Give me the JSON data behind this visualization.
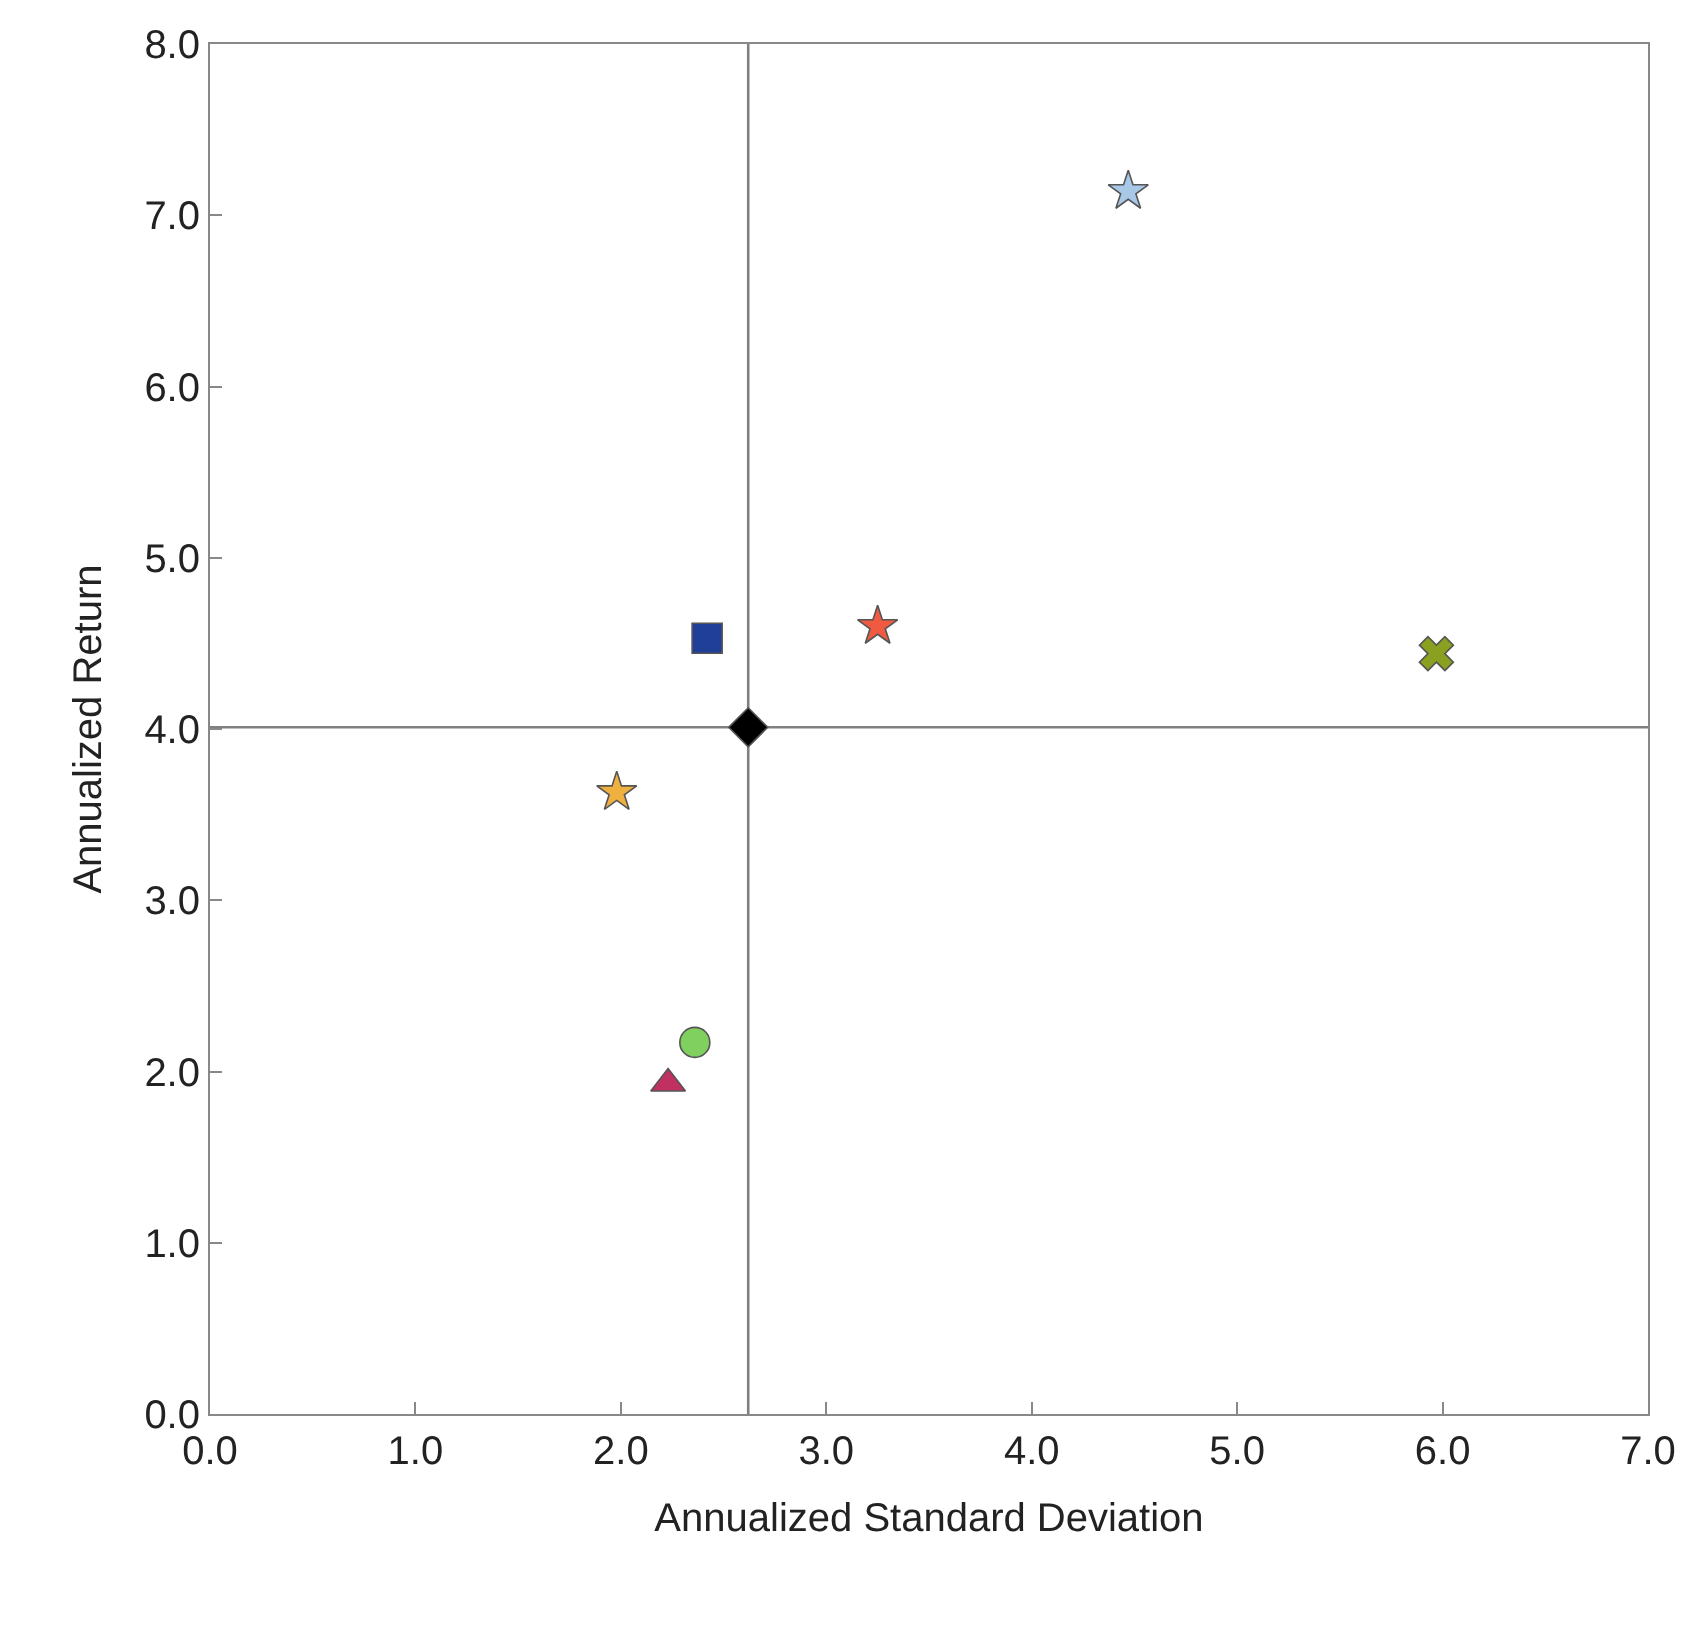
{
  "chart_data": {
    "type": "scatter",
    "xlabel": "Annualized Standard Deviation",
    "ylabel": "Annualized Return",
    "xlim": [
      0,
      7
    ],
    "ylim": [
      0,
      8
    ],
    "xticks": [
      {
        "value": 0,
        "label": "0.0"
      },
      {
        "value": 1,
        "label": "1.0"
      },
      {
        "value": 2,
        "label": "2.0"
      },
      {
        "value": 3,
        "label": "3.0"
      },
      {
        "value": 4,
        "label": "4.0"
      },
      {
        "value": 5,
        "label": "5.0"
      },
      {
        "value": 6,
        "label": "6.0"
      },
      {
        "value": 7,
        "label": "7.0"
      }
    ],
    "yticks": [
      {
        "value": 0,
        "label": "0.0"
      },
      {
        "value": 1,
        "label": "1.0"
      },
      {
        "value": 2,
        "label": "2.0"
      },
      {
        "value": 3,
        "label": "3.0"
      },
      {
        "value": 4,
        "label": "4.0"
      },
      {
        "value": 5,
        "label": "5.0"
      },
      {
        "value": 6,
        "label": "6.0"
      },
      {
        "value": 7,
        "label": "7.0"
      },
      {
        "value": 8,
        "label": "8.0"
      }
    ],
    "grid": false,
    "ref_lines": [
      {
        "axis": "x",
        "value": 2.62,
        "color": "#808080"
      },
      {
        "axis": "y",
        "value": 4.01,
        "color": "#808080"
      }
    ],
    "series": [
      {
        "color": "#1f3f99",
        "marker": "square",
        "x": [
          2.42
        ],
        "values": [
          4.53
        ]
      },
      {
        "color": "#f05a40",
        "marker": "star",
        "x": [
          3.25
        ],
        "values": [
          4.6
        ]
      },
      {
        "color": "#a8c8e8",
        "marker": "star",
        "x": [
          4.47
        ],
        "values": [
          7.14
        ]
      },
      {
        "color": "#8aa020",
        "marker": "cross",
        "x": [
          5.97
        ],
        "values": [
          4.44
        ]
      },
      {
        "color": "#000000",
        "marker": "diamond",
        "x": [
          2.62
        ],
        "values": [
          4.01
        ]
      },
      {
        "color": "#f0b040",
        "marker": "star",
        "x": [
          1.98
        ],
        "values": [
          3.63
        ]
      },
      {
        "color": "#80d060",
        "marker": "circle",
        "x": [
          2.36
        ],
        "values": [
          2.17
        ]
      },
      {
        "color": "#c03060",
        "marker": "triangle",
        "x": [
          2.23
        ],
        "values": [
          1.93
        ]
      }
    ]
  }
}
